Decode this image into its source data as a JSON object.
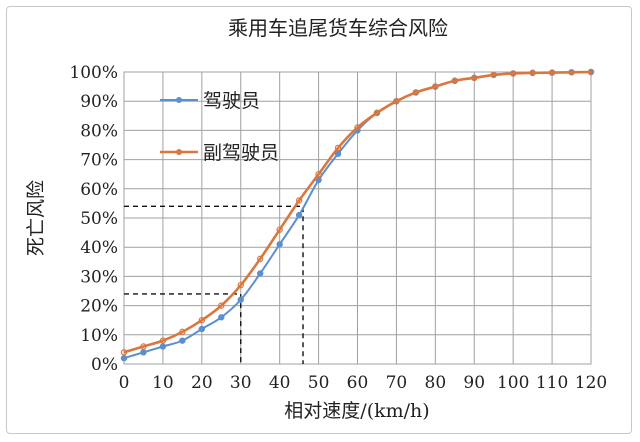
{
  "chart_data": {
    "type": "line",
    "title": "乘用车追尾货车综合风险",
    "xlabel": "相对速度/(km/h)",
    "ylabel": "死亡风险",
    "xlim": [
      0,
      120
    ],
    "ylim": [
      0,
      100
    ],
    "x_ticks": [
      "0",
      "10",
      "20",
      "30",
      "40",
      "50",
      "60",
      "70",
      "80",
      "90",
      "100",
      "110",
      "120"
    ],
    "y_ticks": [
      "0%",
      "10%",
      "20%",
      "30%",
      "40%",
      "50%",
      "60%",
      "70%",
      "80%",
      "90%",
      "100%"
    ],
    "grid": true,
    "legend_position": "top-left",
    "series": [
      {
        "name": "驾驶员",
        "color": "#5b8fd0",
        "x": [
          0,
          5,
          10,
          15,
          20,
          25,
          30,
          35,
          40,
          45,
          50,
          55,
          60,
          65,
          70,
          75,
          80,
          85,
          90,
          95,
          100,
          105,
          110,
          115,
          120
        ],
        "y": [
          2,
          4,
          6,
          8,
          12,
          16,
          22,
          31,
          41,
          51,
          63,
          72,
          80,
          86,
          90,
          93,
          95,
          97,
          98,
          99,
          99.5,
          99.7,
          99.8,
          99.9,
          100
        ]
      },
      {
        "name": "副驾驶员",
        "color": "#d9773f",
        "x": [
          0,
          5,
          10,
          15,
          20,
          25,
          30,
          35,
          40,
          45,
          50,
          55,
          60,
          65,
          70,
          75,
          80,
          85,
          90,
          95,
          100,
          105,
          110,
          115,
          120
        ],
        "y": [
          4,
          6,
          8,
          11,
          15,
          20,
          27,
          36,
          46,
          56,
          65,
          74,
          81,
          86,
          90,
          93,
          95,
          97,
          98,
          99,
          99.5,
          99.7,
          99.8,
          99.9,
          100
        ]
      }
    ],
    "annotations": [
      {
        "type": "dashed-guide",
        "x": 30,
        "y": 24
      },
      {
        "type": "dashed-guide",
        "x": 46,
        "y": 54
      }
    ]
  }
}
